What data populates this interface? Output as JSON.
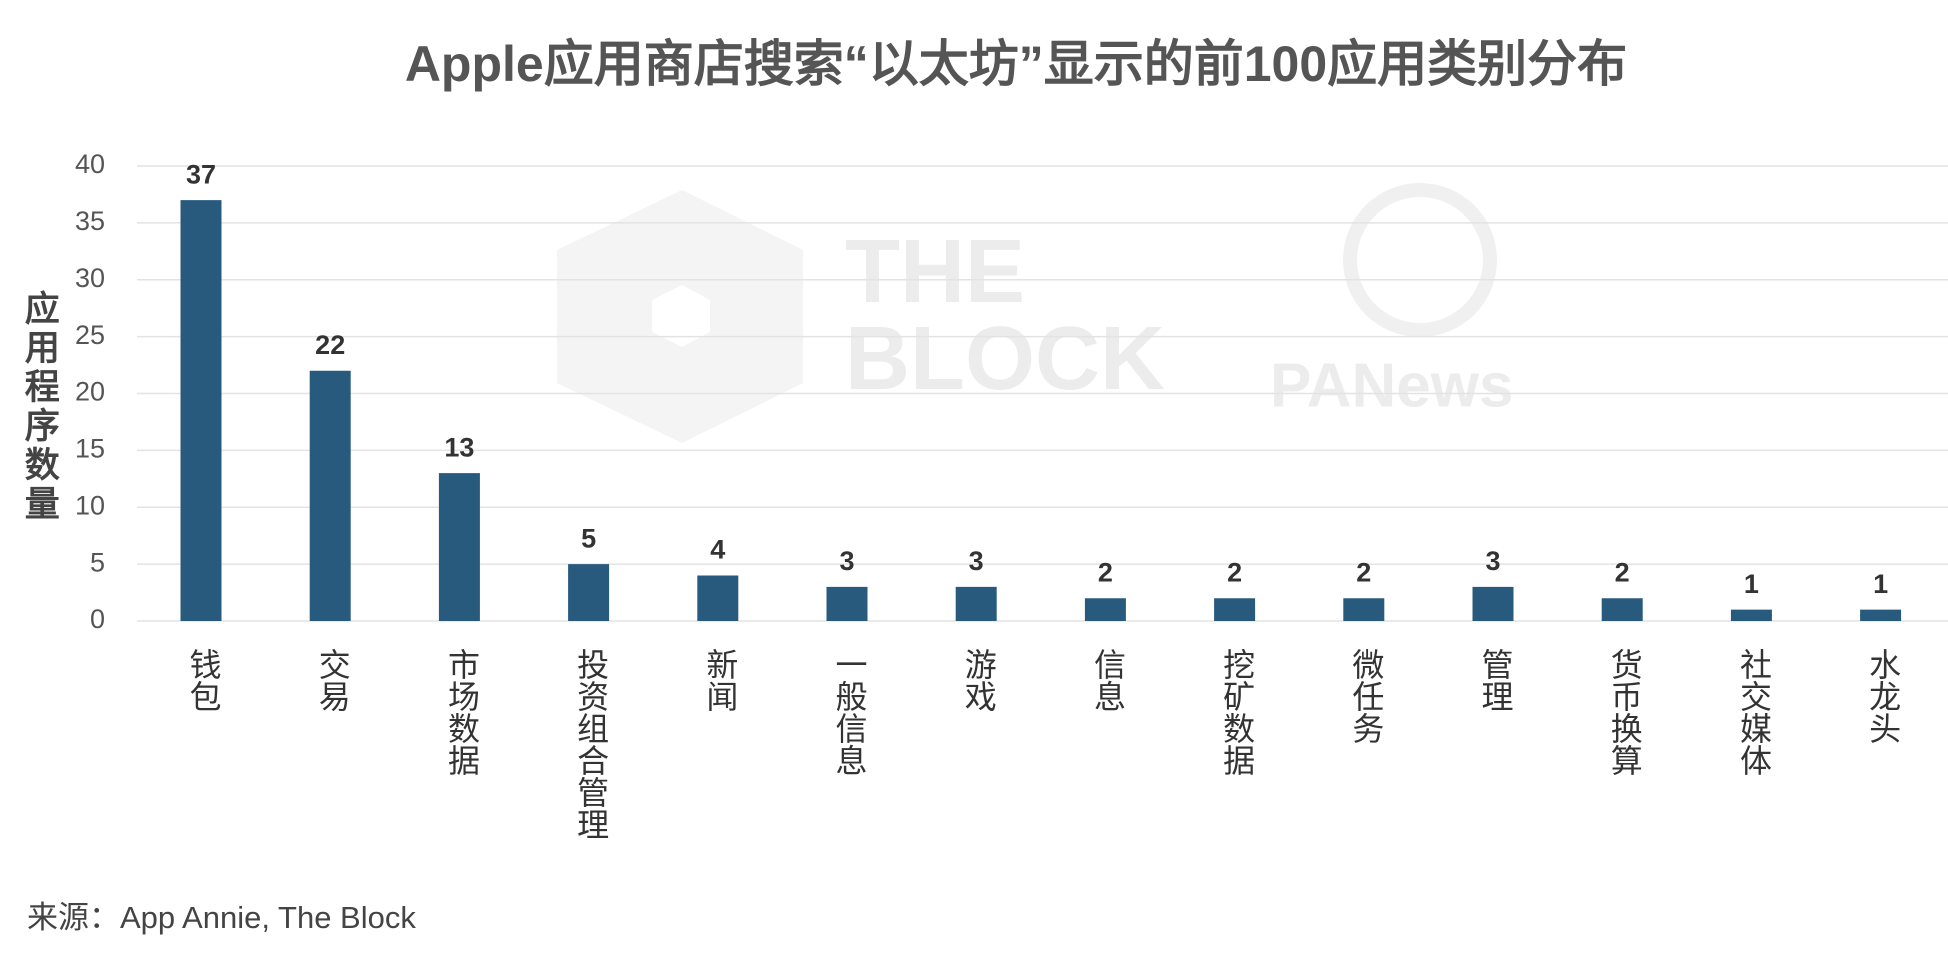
{
  "chart_data": {
    "type": "bar",
    "title": "Apple应用商店搜索“以太坊”显示的前100应用类别分布",
    "y_label": "应用程序数量",
    "categories": [
      "钱包",
      "交易",
      "市场数据",
      "投资组合管理",
      "新闻",
      "一般信息",
      "游戏",
      "信息",
      "挖矿数据",
      "微任务",
      "管理",
      "货币换算",
      "社交媒体",
      "水龙头"
    ],
    "values": [
      37,
      22,
      13,
      5,
      4,
      3,
      3,
      2,
      2,
      2,
      3,
      2,
      1,
      1
    ],
    "color": "#285a7e",
    "ylim": [
      0,
      40
    ],
    "yticks": [
      0,
      5,
      10,
      15,
      20,
      25,
      30,
      35,
      40
    ],
    "grid": true,
    "source": "来源：App Annie, The Block",
    "watermarks": [
      "THE",
      "BLOCK",
      "PANews"
    ]
  }
}
